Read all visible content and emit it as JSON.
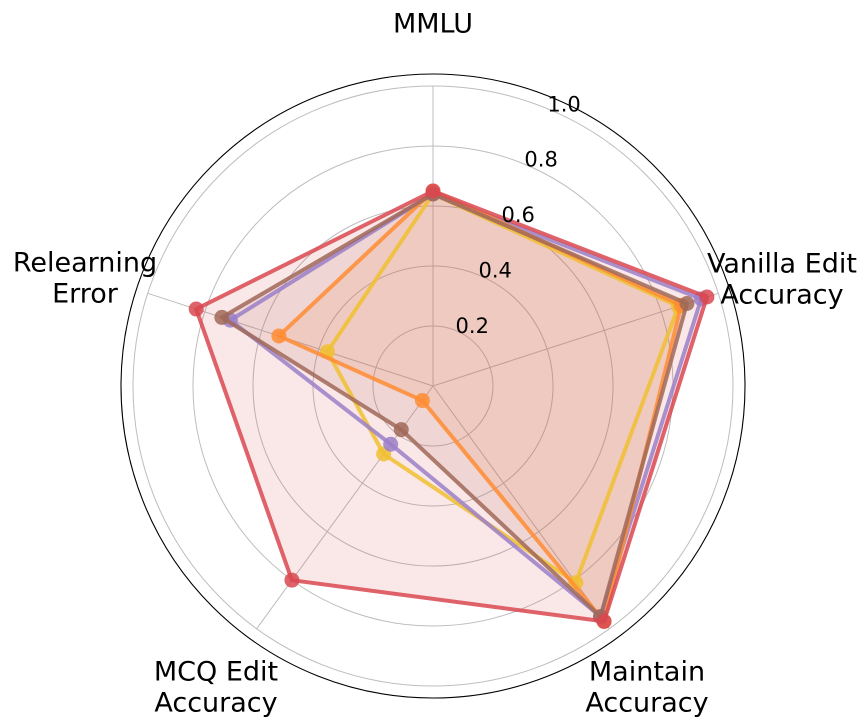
{
  "chart_data": {
    "type": "radar",
    "axes": [
      {
        "label_lines": [
          "MMLU"
        ]
      },
      {
        "label_lines": [
          "Vanilla Edit",
          "Accuracy"
        ]
      },
      {
        "label_lines": [
          "Maintain",
          "Accuracy"
        ]
      },
      {
        "label_lines": [
          "MCQ Edit",
          "Accuracy"
        ]
      },
      {
        "label_lines": [
          "Relearning",
          "Error"
        ]
      }
    ],
    "rlim": [
      0,
      1.0
    ],
    "ticks": [
      "0.2",
      "0.4",
      "0.6",
      "0.8",
      "1.0"
    ],
    "tick_values": [
      0.2,
      0.4,
      0.6,
      0.8,
      1.0
    ],
    "grid": true,
    "series": [
      {
        "color": "#f0c030",
        "values": [
          0.64,
          0.86,
          0.81,
          0.28,
          0.37
        ],
        "fill": false
      },
      {
        "color": "#9b7fc8",
        "values": [
          0.64,
          0.94,
          0.95,
          0.24,
          0.71
        ],
        "fill": false
      },
      {
        "color": "#ff8c33",
        "values": [
          0.65,
          0.87,
          0.97,
          0.06,
          0.54
        ],
        "fill": true
      },
      {
        "color": "#a06858",
        "values": [
          0.64,
          0.89,
          0.95,
          0.18,
          0.74
        ],
        "fill": true
      },
      {
        "color": "#d94850",
        "values": [
          0.65,
          0.96,
          0.97,
          0.8,
          0.83
        ],
        "fill": true
      }
    ]
  }
}
